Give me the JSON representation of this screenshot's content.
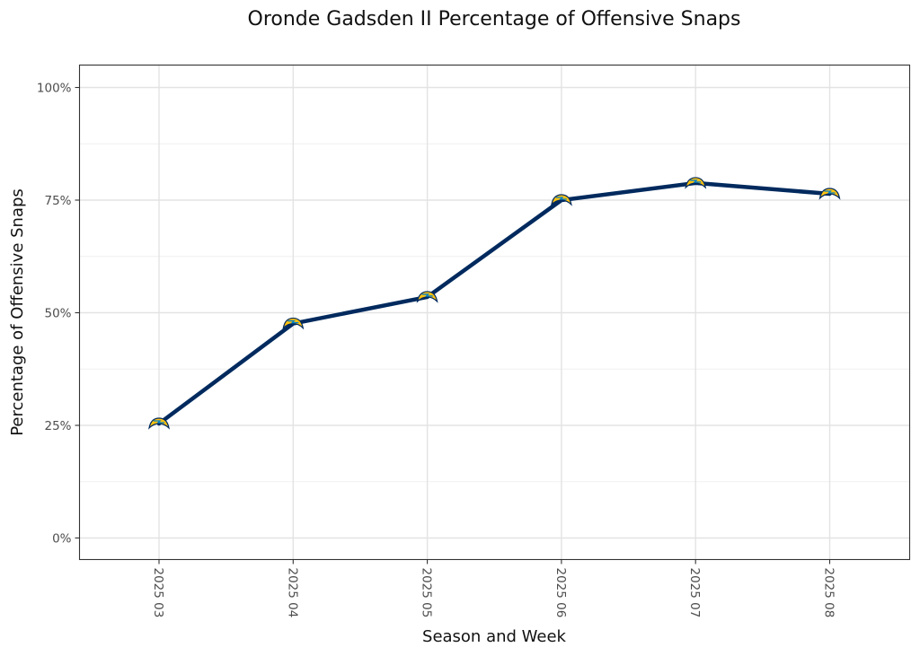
{
  "chart_data": {
    "type": "line",
    "title": "Oronde Gadsden II Percentage of Offensive Snaps",
    "xlabel": "Season and Week",
    "ylabel": "Percentage of Offensive Snaps",
    "categories": [
      "2025 03",
      "2025 04",
      "2025 05",
      "2025 06",
      "2025 07",
      "2025 08"
    ],
    "values": [
      25.4,
      47.6,
      53.5,
      75.0,
      78.8,
      76.4
    ],
    "ylim": [
      0,
      100
    ],
    "yticks": [
      0,
      25,
      50,
      75,
      100
    ],
    "ytick_labels": [
      "0%",
      "25%",
      "50%",
      "75%",
      "100%"
    ],
    "grid": true,
    "legend": "none",
    "colors": {
      "line": "#002a5e",
      "marker_fill": "#ffc20e",
      "marker_bolt": "#0080c6"
    },
    "marker_icon": "chargers-bolt-logo-icon"
  }
}
